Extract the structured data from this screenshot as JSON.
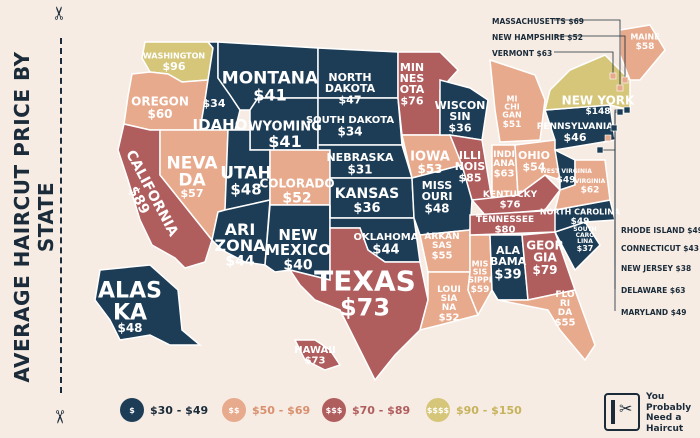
{
  "title": "AVERAGE HAIRCUT PRICE BY STATE",
  "colors": {
    "background": "#f6ece3",
    "tier1": "#1d3d57",
    "tier2": "#e8aa8c",
    "tier3": "#b05d5e",
    "tier4": "#d6c67a",
    "text_dark": "#1b2b3a",
    "border": "#ffffff"
  },
  "legend": [
    {
      "symbol": "$",
      "range": "$30 - $49",
      "color": "#1d3d57",
      "text_color": "#1b2b3a"
    },
    {
      "symbol": "$$",
      "range": "$50 - $69",
      "color": "#e8aa8c",
      "text_color": "#d8906f"
    },
    {
      "symbol": "$$$",
      "range": "$70 - $89",
      "color": "#b05d5e",
      "text_color": "#b05d5e"
    },
    {
      "symbol": "$$$$",
      "range": "$90 - $150",
      "color": "#d6c67a",
      "text_color": "#c7b35c"
    }
  ],
  "states": [
    {
      "name": "WASHINGTON",
      "price": "$96"
    },
    {
      "name": "OREGON",
      "price": "$60"
    },
    {
      "name": "CALIFORNIA",
      "price": "$89"
    },
    {
      "name": "IDAHO",
      "price": "$34"
    },
    {
      "name": "NEVADA",
      "price": "$57"
    },
    {
      "name": "MONTANA",
      "price": "$41"
    },
    {
      "name": "WYOMING",
      "price": "$41"
    },
    {
      "name": "UTAH",
      "price": "$48"
    },
    {
      "name": "ARIZONA",
      "price": "$44"
    },
    {
      "name": "COLORADO",
      "price": "$52"
    },
    {
      "name": "NEW MEXICO",
      "price": "$40"
    },
    {
      "name": "NORTH DAKOTA",
      "price": "$47"
    },
    {
      "name": "SOUTH DAKOTA",
      "price": "$34"
    },
    {
      "name": "NEBRASKA",
      "price": "$31"
    },
    {
      "name": "KANSAS",
      "price": "$36"
    },
    {
      "name": "OKLAHOMA",
      "price": "$44"
    },
    {
      "name": "TEXAS",
      "price": "$73"
    },
    {
      "name": "MINNESOTA",
      "price": "$76"
    },
    {
      "name": "IOWA",
      "price": "$53"
    },
    {
      "name": "MISSOURI",
      "price": "$48"
    },
    {
      "name": "ARKANSAS",
      "price": "$55"
    },
    {
      "name": "LOUISIANA",
      "price": "$52"
    },
    {
      "name": "WISCONSIN",
      "price": "$36"
    },
    {
      "name": "ILLINOIS",
      "price": "$85"
    },
    {
      "name": "MISSISSIPPI",
      "price": "$59"
    },
    {
      "name": "MICHIGAN",
      "price": "$51"
    },
    {
      "name": "INDIANA",
      "price": "$63"
    },
    {
      "name": "KENTUCKY",
      "price": "$76"
    },
    {
      "name": "TENNESSEE",
      "price": "$80"
    },
    {
      "name": "ALABAMA",
      "price": "$39"
    },
    {
      "name": "OHIO",
      "price": "$54"
    },
    {
      "name": "WEST VIRGINIA",
      "price": "$49"
    },
    {
      "name": "GEORGIA",
      "price": "$79"
    },
    {
      "name": "FLORIDA",
      "price": "$55"
    },
    {
      "name": "SOUTH CAROLINA",
      "price": "$37"
    },
    {
      "name": "NORTH CAROLINA",
      "price": "$49"
    },
    {
      "name": "VIRGINIA",
      "price": "$62"
    },
    {
      "name": "PENNSYLVANIA",
      "price": "$46"
    },
    {
      "name": "NEW YORK",
      "price": "$148"
    },
    {
      "name": "MAINE",
      "price": "$58"
    },
    {
      "name": "ALASKA",
      "price": "$48"
    },
    {
      "name": "HAWAII",
      "price": "$73"
    },
    {
      "name": "MASSACHUSETTS",
      "price": "$69"
    },
    {
      "name": "NEW HAMPSHIRE",
      "price": "$52"
    },
    {
      "name": "VERMONT",
      "price": "$63"
    },
    {
      "name": "RHODE ISLAND",
      "price": "$49"
    },
    {
      "name": "CONNECTICUT",
      "price": "$43"
    },
    {
      "name": "NEW JERSEY",
      "price": "$38"
    },
    {
      "name": "DELAWARE",
      "price": "$63"
    },
    {
      "name": "MARYLAND",
      "price": "$49"
    }
  ],
  "brand": {
    "line1": "You",
    "line2": "Probably",
    "line3": "Need a",
    "line4": "Haircut"
  }
}
